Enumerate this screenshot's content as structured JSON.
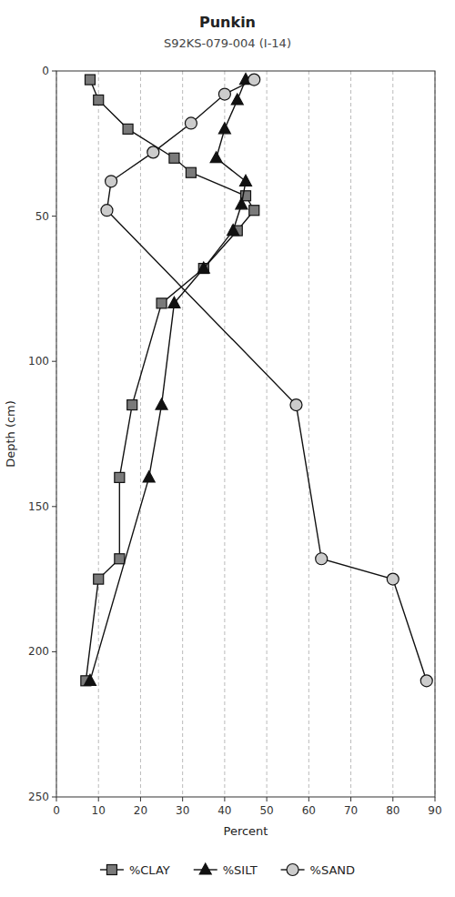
{
  "chart_data": {
    "type": "line",
    "title": "Punkin",
    "subtitle": "S92KS-079-004 (I-14)",
    "xlabel": "Percent",
    "ylabel": "Depth (cm)",
    "xlim": [
      0,
      90
    ],
    "ylim": [
      250,
      0
    ],
    "xticks": [
      0,
      10,
      20,
      30,
      40,
      50,
      60,
      70,
      80,
      90
    ],
    "yticks": [
      0,
      50,
      100,
      150,
      200,
      250
    ],
    "grid": "x",
    "legend": "bottom",
    "series": [
      {
        "name": "%CLAY",
        "color": "#111111",
        "marker": "square",
        "x": [
          8,
          10,
          17,
          28,
          32,
          45,
          47,
          43,
          35,
          25,
          18,
          15,
          15,
          10,
          7
        ],
        "values": [
          3,
          10,
          20,
          30,
          35,
          43,
          48,
          55,
          68,
          80,
          115,
          140,
          168,
          175,
          210
        ]
      },
      {
        "name": "%SILT",
        "color": "#111111",
        "marker": "triangle",
        "x": [
          45,
          43,
          40,
          38,
          45,
          44,
          42,
          35,
          28,
          25,
          22,
          8
        ],
        "values": [
          3,
          10,
          20,
          30,
          38,
          46,
          55,
          68,
          80,
          115,
          140,
          210
        ]
      },
      {
        "name": "%SAND",
        "color": "#111111",
        "marker": "circle",
        "x": [
          47,
          40,
          32,
          23,
          13,
          12,
          57,
          63,
          80,
          88
        ],
        "values": [
          3,
          8,
          18,
          28,
          38,
          48,
          115,
          168,
          175,
          210
        ]
      }
    ]
  }
}
